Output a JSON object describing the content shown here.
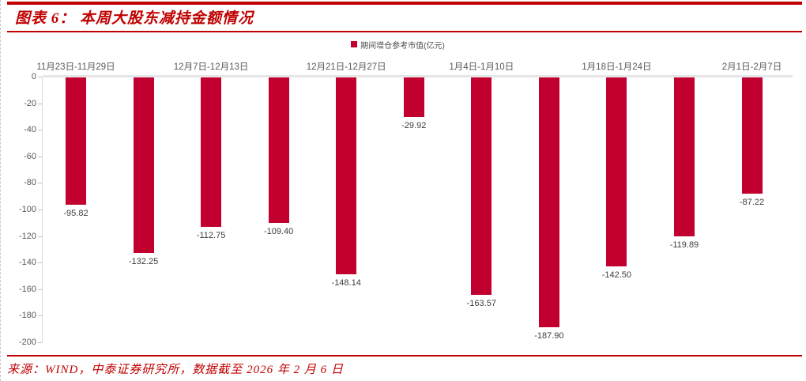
{
  "header": {
    "title": "图表 6： 本周大股东减持金额情况"
  },
  "footer": {
    "source": "来源：WIND，中泰证券研究所，数据截至 2026 年 2 月 6 日"
  },
  "colors": {
    "accent_red": "#c00000",
    "bar_red": "#c2002f",
    "axis_gray": "#d9d9d9",
    "label_gray": "#595959"
  },
  "chart_data": {
    "type": "bar",
    "title": "",
    "legend": [
      {
        "label": "期间增仓参考市值(亿元)",
        "color": "#c2002f"
      }
    ],
    "legend_position": "top-center",
    "grid": false,
    "ylabel": "",
    "xlabel": "",
    "ylim": [
      -200,
      0
    ],
    "ytick_step": 20,
    "ytick_labels": [
      "0",
      "-20",
      "-40",
      "-60",
      "-80",
      "-100",
      "-120",
      "-140",
      "-160",
      "-180",
      "-200"
    ],
    "categories": [
      {
        "label": "11月23日-11月29日",
        "bar": 0
      },
      {
        "label": "12月7日-12月13日",
        "bar": 2
      },
      {
        "label": "12月21日-12月27日",
        "bar": 4
      },
      {
        "label": "1月4日-1月10日",
        "bar": 6
      },
      {
        "label": "1月18日-1月24日",
        "bar": 8
      },
      {
        "label": "2月1日-2月7日",
        "bar": 10
      }
    ],
    "series": [
      {
        "name": "期间增仓参考市值(亿元)",
        "values": [
          -95.82,
          -132.25,
          -112.75,
          -109.4,
          -148.14,
          -29.92,
          -163.57,
          -187.9,
          -142.5,
          -119.89,
          -87.22
        ],
        "value_labels": [
          "-95.82",
          "-132.25",
          "-112.75",
          "-109.40",
          "-148.14",
          "-29.92",
          "-163.57",
          "-187.90",
          "-142.50",
          "-119.89",
          "-87.22"
        ]
      }
    ]
  }
}
